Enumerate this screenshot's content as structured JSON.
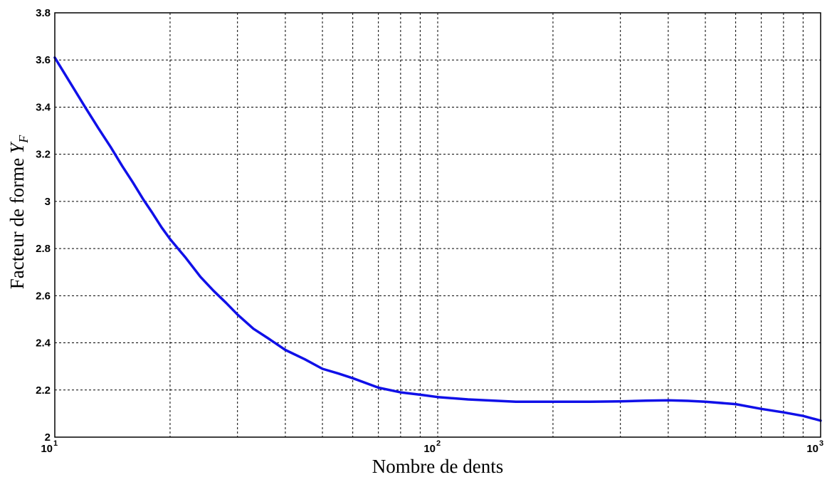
{
  "chart_data": {
    "type": "line",
    "title": "",
    "xlabel": "Nombre de dents",
    "ylabel": "Facteur de forme",
    "ylabel_symbol": "Y",
    "ylabel_subscript": "F",
    "xscale": "log",
    "xlim": [
      10,
      1000
    ],
    "ylim": [
      2,
      3.8
    ],
    "grid": true,
    "xticks": [
      {
        "base": "10",
        "exp": "1"
      },
      {
        "base": "10",
        "exp": "2"
      },
      {
        "base": "10",
        "exp": "3"
      }
    ],
    "yticks": [
      "2",
      "2.2",
      "2.4",
      "2.6",
      "2.8",
      "3",
      "3.2",
      "3.4",
      "3.6",
      "3.8"
    ],
    "series": [
      {
        "color": "#1010e8",
        "x": [
          10,
          11,
          12,
          13,
          14,
          15,
          16,
          17,
          18,
          19,
          20,
          22,
          24,
          26,
          28,
          30,
          33,
          36,
          40,
          45,
          50,
          55,
          60,
          70,
          80,
          90,
          100,
          120,
          140,
          160,
          180,
          200,
          250,
          300,
          350,
          400,
          450,
          500,
          600,
          700,
          800,
          900,
          1000
        ],
        "y": [
          3.61,
          3.5,
          3.4,
          3.31,
          3.23,
          3.15,
          3.08,
          3.01,
          2.95,
          2.89,
          2.84,
          2.76,
          2.68,
          2.62,
          2.57,
          2.52,
          2.46,
          2.42,
          2.37,
          2.33,
          2.29,
          2.27,
          2.25,
          2.21,
          2.19,
          2.18,
          2.17,
          2.16,
          2.155,
          2.15,
          2.15,
          2.15,
          2.15,
          2.152,
          2.155,
          2.156,
          2.154,
          2.15,
          2.14,
          2.12,
          2.105,
          2.09,
          2.07
        ]
      }
    ]
  }
}
